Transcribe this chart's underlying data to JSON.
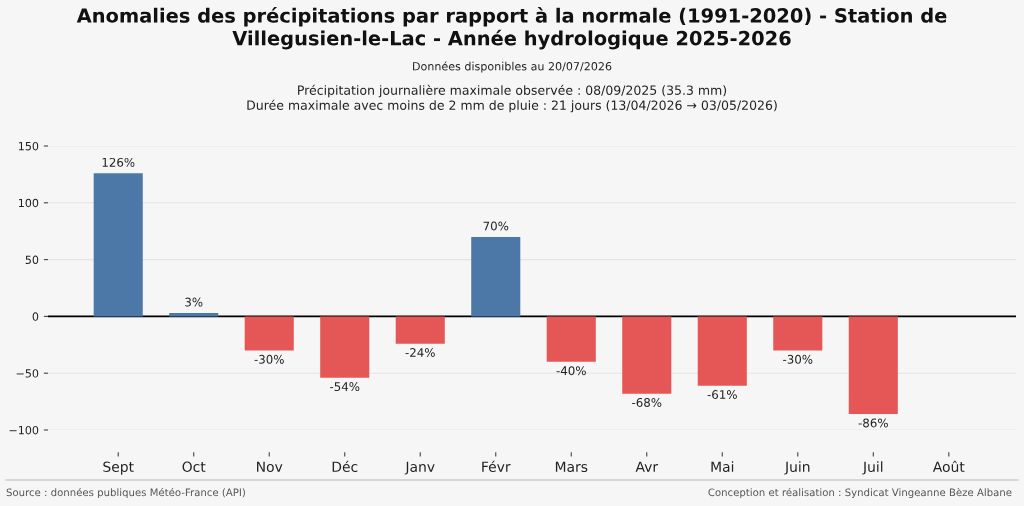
{
  "chart_data": {
    "type": "bar",
    "title": "Anomalies des précipitations par rapport à la normale (1991-2020) - Station de Villegusien-le-Lac - Année hydrologique 2025-2026",
    "subtitle": "Données disponibles au 20/07/2026",
    "annotations": [
      "Précipitation journalière maximale observée : 08/09/2025 (35.3 mm)",
      "Durée maximale avec moins de 2 mm de pluie : 21 jours (13/04/2026 → 03/05/2026)",
      "Source : données publiques Météo-France (API)",
      "Conception et réalisation : Syndicat Vingeanne Bèze Albane"
    ],
    "categories": [
      "Sept",
      "Oct",
      "Nov",
      "Déc",
      "Janv",
      "Févr",
      "Mars",
      "Avr",
      "Mai",
      "Juin",
      "Juil",
      "Août"
    ],
    "values": [
      126,
      3,
      -30,
      -54,
      -24,
      70,
      -40,
      -68,
      -61,
      -30,
      -86,
      null
    ],
    "colors": [
      "#4c78a8",
      "#4c78a8",
      "#e45756",
      "#e45756",
      "#e45756",
      "#4c78a8",
      "#e45756",
      "#e45756",
      "#e45756",
      "#e45756",
      "#e45756",
      null
    ],
    "value_labels": [
      "126%",
      "3%",
      "-30%",
      "-54%",
      "-24%",
      "70%",
      "-40%",
      "-68%",
      "-61%",
      "-30%",
      "-86%",
      null
    ],
    "ylim": [
      -100,
      150
    ],
    "yticks": [
      {
        "value": -100,
        "label": "−100"
      },
      {
        "value": -50,
        "label": "−50"
      },
      0,
      50,
      100,
      150
    ],
    "ref_lines": [
      {
        "axis": "y",
        "value": 0,
        "color": "#000000"
      }
    ],
    "grid": "y"
  }
}
